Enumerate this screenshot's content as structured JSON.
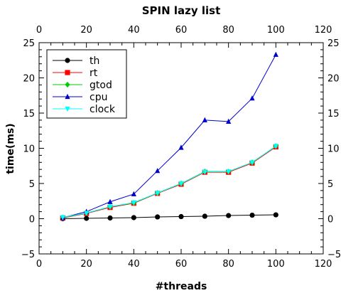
{
  "chart_data": {
    "type": "line",
    "title": "SPIN lazy list",
    "xlabel": "#threads",
    "ylabel": "time(ms)",
    "xlim": [
      0,
      120
    ],
    "ylim": [
      -5,
      25
    ],
    "xticks": [
      0,
      20,
      40,
      60,
      80,
      100,
      120
    ],
    "yticks": [
      -5,
      0,
      5,
      10,
      15,
      20,
      25
    ],
    "grid": false,
    "legend_position": "top-left",
    "x": [
      10,
      20,
      30,
      40,
      50,
      60,
      70,
      80,
      90,
      100
    ],
    "series": [
      {
        "name": "th",
        "color": "#000000",
        "marker": "circle",
        "values": [
          0.0,
          0.05,
          0.1,
          0.15,
          0.25,
          0.3,
          0.35,
          0.45,
          0.5,
          0.55
        ]
      },
      {
        "name": "rt",
        "color": "#ff0000",
        "marker": "square",
        "values": [
          0.1,
          0.75,
          1.6,
          2.2,
          3.6,
          4.9,
          6.6,
          6.6,
          7.9,
          10.2
        ]
      },
      {
        "name": "gtod",
        "color": "#00cc00",
        "marker": "diamond",
        "values": [
          0.15,
          0.8,
          1.7,
          2.25,
          3.65,
          5.0,
          6.7,
          6.7,
          8.0,
          10.3
        ]
      },
      {
        "name": "cpu",
        "color": "#0000cc",
        "marker": "triangle-up",
        "values": [
          0.15,
          1.0,
          2.4,
          3.5,
          6.8,
          10.1,
          14.0,
          13.8,
          17.1,
          23.3
        ]
      },
      {
        "name": "clock",
        "color": "#00ffff",
        "marker": "triangle-down",
        "values": [
          0.2,
          0.8,
          1.7,
          2.3,
          3.65,
          5.0,
          6.65,
          6.7,
          8.0,
          10.3
        ]
      }
    ]
  }
}
